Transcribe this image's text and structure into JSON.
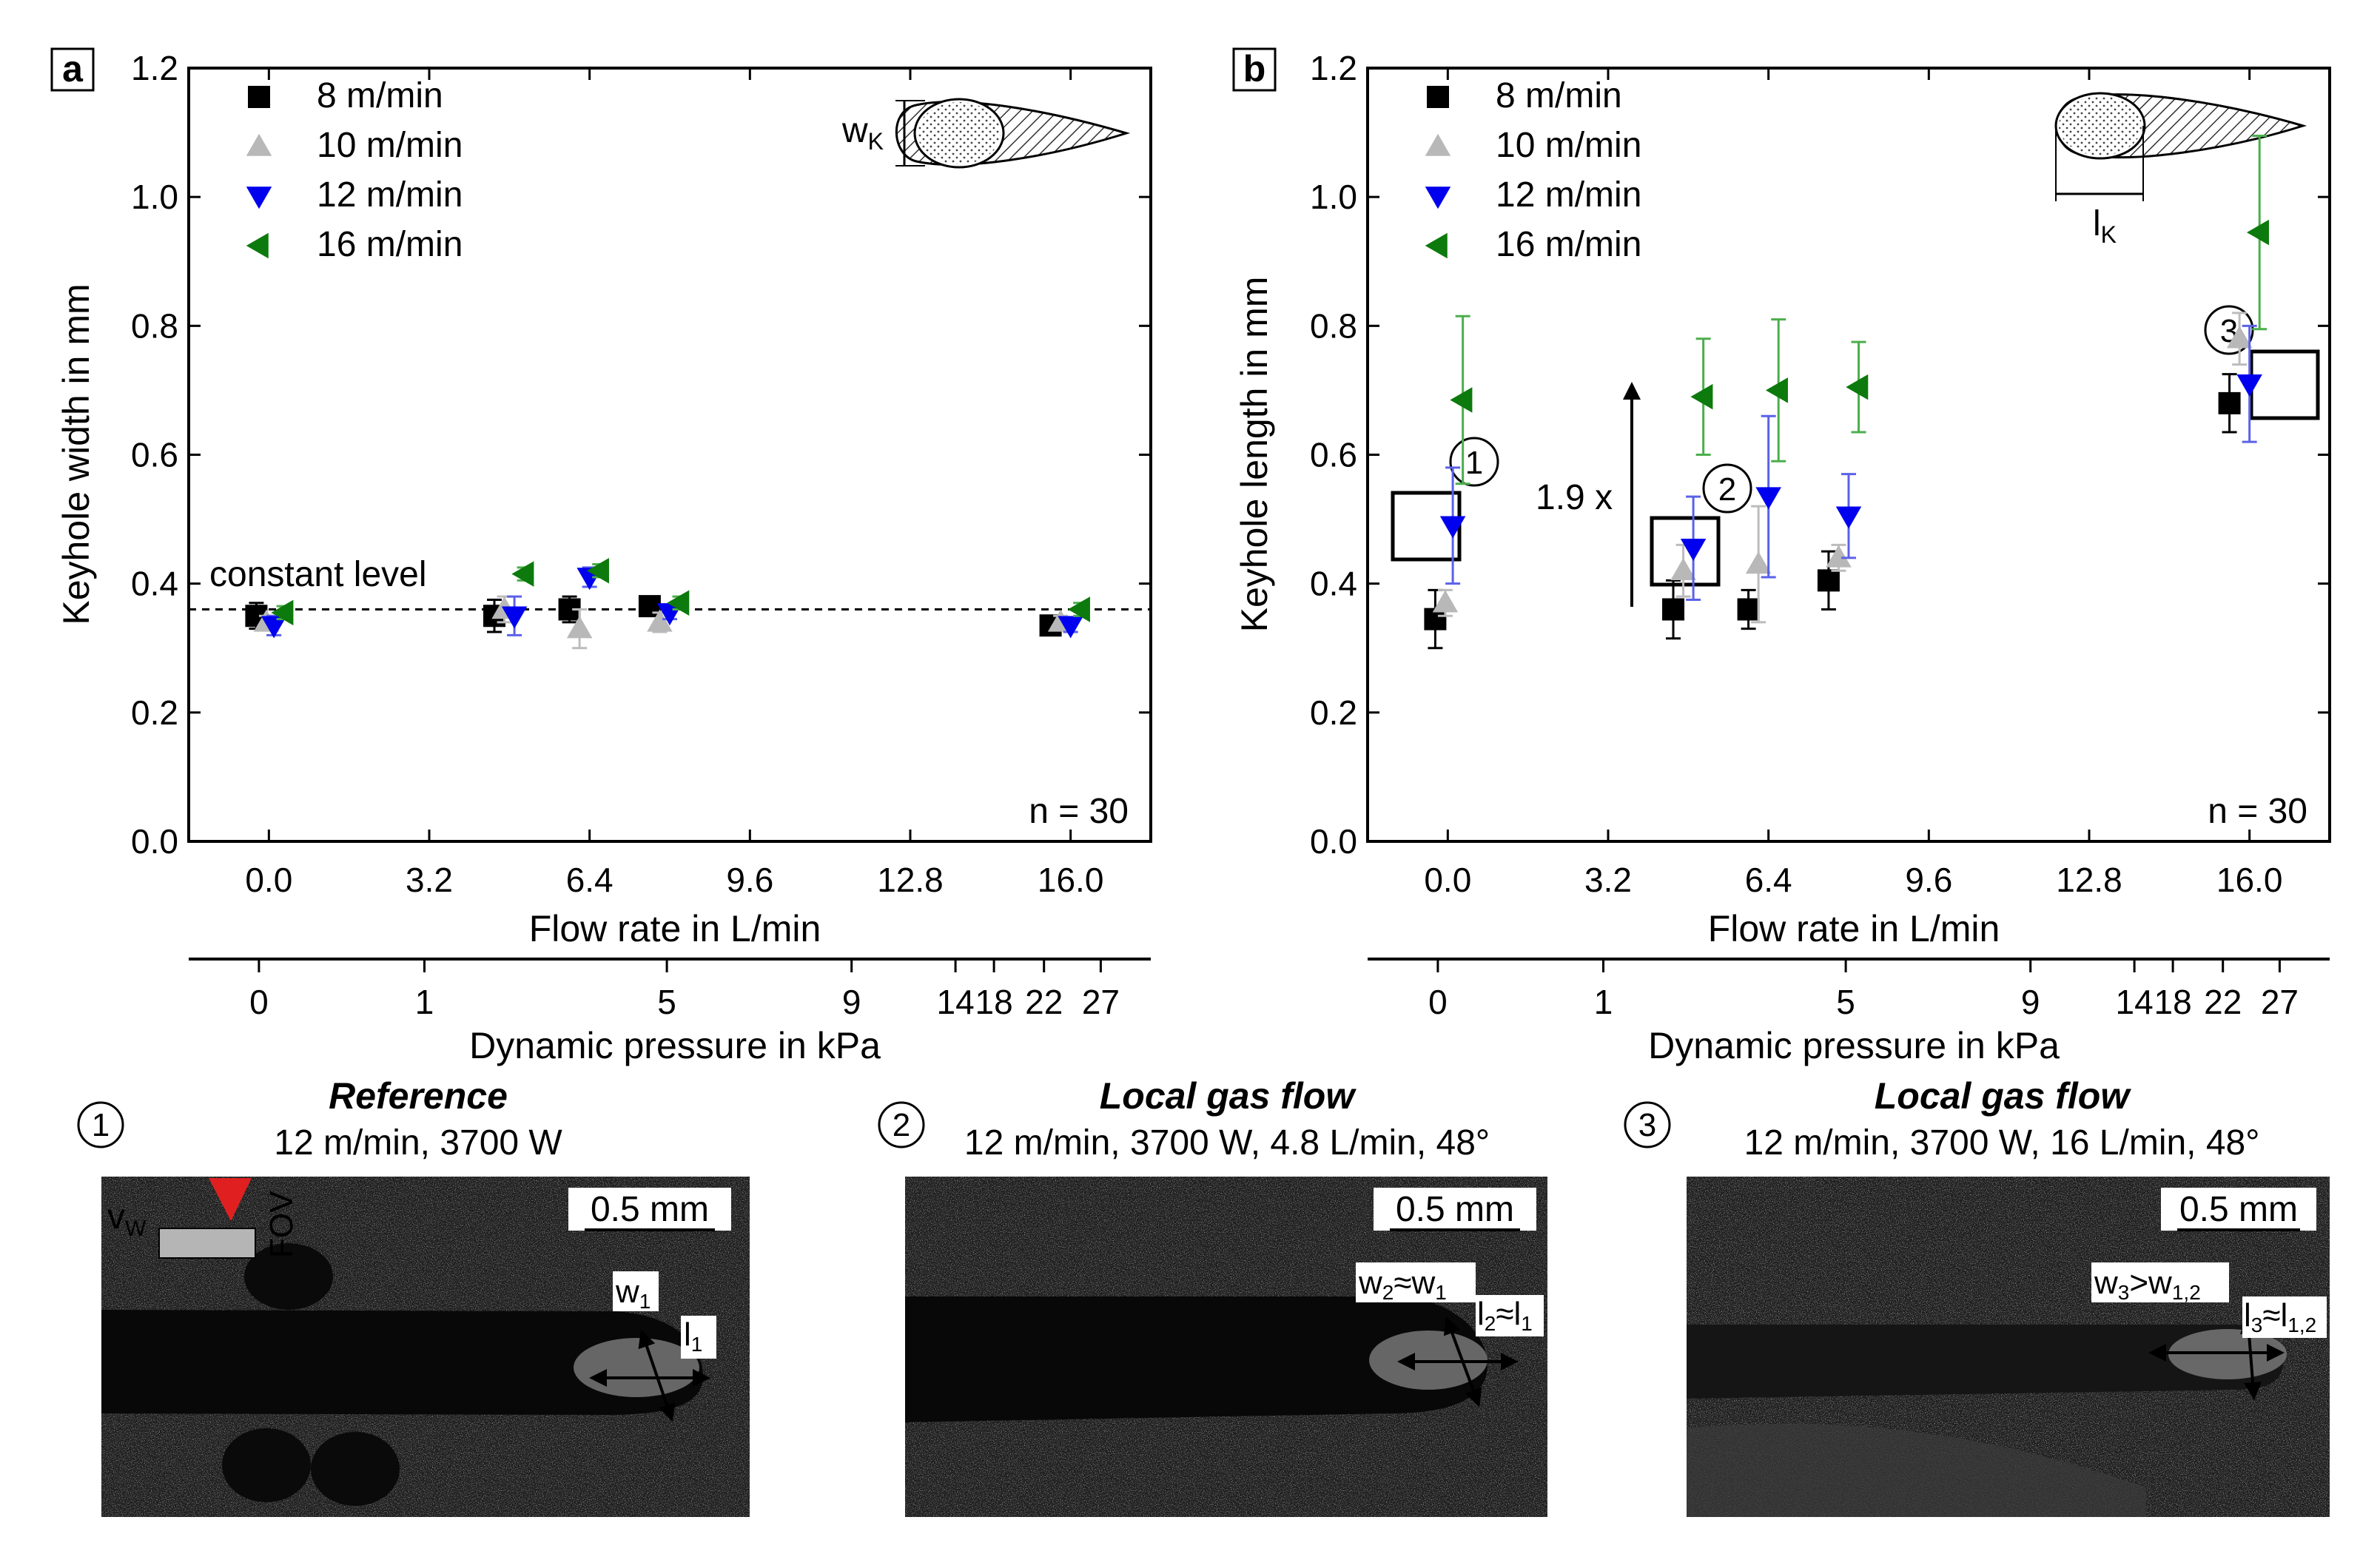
{
  "colors": {
    "s8": "#000000",
    "s10": "#b8b8b8",
    "s12": "#0000ee",
    "s16": "#0c7a0c",
    "errbar10": "#bcbcbc",
    "errbar12": "#5a62e8",
    "errbar16": "#4cae4c"
  },
  "shared": {
    "flow_ticks": [
      "0.0",
      "3.2",
      "6.4",
      "9.6",
      "12.8",
      "16.0"
    ],
    "pressure_ticks": [
      "0",
      "1",
      "5",
      "9",
      "14",
      "18",
      "22",
      "27"
    ],
    "xlabel": "Flow rate in L/min",
    "x2label": "Dynamic pressure in kPa",
    "y_ticks": [
      "0.0",
      "0.2",
      "0.4",
      "0.6",
      "0.8",
      "1.0",
      "1.2"
    ],
    "n_label": "n = 30"
  },
  "chart_data": [
    {
      "type": "scatter",
      "panel": "a",
      "ylabel": "Keyhole width in mm",
      "xlabel": "Flow rate in L/min",
      "x2label": "Dynamic pressure in kPa",
      "xlim": [
        -1.6,
        17.6
      ],
      "ylim": [
        0,
        1.2
      ],
      "inset_label": "w",
      "inset_sub": "K",
      "reference_line": {
        "y": 0.36,
        "label": "constant level"
      },
      "annotation": "n = 30",
      "series": [
        {
          "name": "8 m/min",
          "marker": "square",
          "color": "#000000",
          "points": [
            {
              "x": -0.25,
              "y": 0.35,
              "err": 0.02
            },
            {
              "x": 4.5,
              "y": 0.35,
              "err": 0.025
            },
            {
              "x": 6.0,
              "y": 0.36,
              "err": 0.02
            },
            {
              "x": 7.6,
              "y": 0.365,
              "err": 0.01
            },
            {
              "x": 15.6,
              "y": 0.335,
              "err": 0.01
            }
          ]
        },
        {
          "name": "10 m/min",
          "marker": "triangle-up",
          "color": "#b8b8b8",
          "points": [
            {
              "x": -0.05,
              "y": 0.34,
              "err": 0.01
            },
            {
              "x": 4.7,
              "y": 0.36,
              "err": 0.02
            },
            {
              "x": 6.2,
              "y": 0.33,
              "err": 0.03
            },
            {
              "x": 7.8,
              "y": 0.34,
              "err": 0.015
            },
            {
              "x": 15.8,
              "y": 0.34,
              "err": 0.01
            }
          ]
        },
        {
          "name": "12 m/min",
          "marker": "triangle-down",
          "color": "#0000ee",
          "points": [
            {
              "x": 0.1,
              "y": 0.335,
              "err": 0.015
            },
            {
              "x": 4.9,
              "y": 0.35,
              "err": 0.03
            },
            {
              "x": 6.4,
              "y": 0.41,
              "err": 0.015
            },
            {
              "x": 8.0,
              "y": 0.355,
              "err": 0.01
            },
            {
              "x": 16.0,
              "y": 0.335,
              "err": 0.01
            }
          ]
        },
        {
          "name": "16 m/min",
          "marker": "triangle-left",
          "color": "#0c7a0c",
          "points": [
            {
              "x": 0.3,
              "y": 0.355,
              "err": 0.01
            },
            {
              "x": 5.1,
              "y": 0.415,
              "err": 0.01
            },
            {
              "x": 6.6,
              "y": 0.42,
              "err": 0.01
            },
            {
              "x": 8.2,
              "y": 0.37,
              "err": 0.01
            },
            {
              "x": 16.2,
              "y": 0.36,
              "err": 0.01
            }
          ]
        }
      ]
    },
    {
      "type": "scatter",
      "panel": "b",
      "ylabel": "Keyhole length in mm",
      "xlabel": "Flow rate in L/min",
      "x2label": "Dynamic pressure in kPa",
      "xlim": [
        -1.6,
        17.6
      ],
      "ylim": [
        0,
        1.2
      ],
      "inset_label": "l",
      "inset_sub": "K",
      "annotation": "n = 30",
      "arrow_label": "1.9 x",
      "markers": [
        "1",
        "2",
        "3"
      ],
      "series": [
        {
          "name": "8 m/min",
          "marker": "square",
          "color": "#000000",
          "points": [
            {
              "x": -0.25,
              "y": 0.345,
              "err": 0.045
            },
            {
              "x": 4.5,
              "y": 0.36,
              "err": 0.045
            },
            {
              "x": 6.0,
              "y": 0.36,
              "err": 0.03
            },
            {
              "x": 7.6,
              "y": 0.405,
              "err": 0.045
            },
            {
              "x": 15.6,
              "y": 0.68,
              "err": 0.045
            }
          ]
        },
        {
          "name": "10 m/min",
          "marker": "triangle-up",
          "color": "#b8b8b8",
          "points": [
            {
              "x": -0.05,
              "y": 0.37,
              "err": 0.02
            },
            {
              "x": 4.7,
              "y": 0.42,
              "err": 0.04
            },
            {
              "x": 6.2,
              "y": 0.43,
              "err": 0.09
            },
            {
              "x": 7.8,
              "y": 0.44,
              "err": 0.02
            },
            {
              "x": 15.8,
              "y": 0.78,
              "err": 0.04
            }
          ]
        },
        {
          "name": "12 m/min",
          "marker": "triangle-down",
          "color": "#0000ee",
          "points": [
            {
              "x": 0.1,
              "y": 0.49,
              "err": 0.09
            },
            {
              "x": 4.9,
              "y": 0.455,
              "err": 0.08
            },
            {
              "x": 6.4,
              "y": 0.535,
              "err": 0.125
            },
            {
              "x": 8.0,
              "y": 0.505,
              "err": 0.065
            },
            {
              "x": 16.0,
              "y": 0.71,
              "err": 0.09
            }
          ]
        },
        {
          "name": "16 m/min",
          "marker": "triangle-left",
          "color": "#0c7a0c",
          "points": [
            {
              "x": 0.3,
              "y": 0.685,
              "err": 0.13
            },
            {
              "x": 5.1,
              "y": 0.69,
              "err": 0.09
            },
            {
              "x": 6.6,
              "y": 0.7,
              "err": 0.11
            },
            {
              "x": 8.2,
              "y": 0.705,
              "err": 0.07
            },
            {
              "x": 16.2,
              "y": 0.945,
              "err": 0.15
            }
          ]
        }
      ]
    }
  ],
  "photos": [
    {
      "marker": "1",
      "title": "Reference",
      "subtitle": "12 m/min, 3700 W",
      "scale": "0.5 mm",
      "labels": {
        "vw": "v",
        "vw_sub": "W",
        "fov": "FOV",
        "w": "w",
        "w_sub": "1",
        "l": "l",
        "l_sub": "1"
      }
    },
    {
      "marker": "2",
      "title": "Local gas flow",
      "subtitle": "12 m/min, 3700 W, 4.8 L/min, 48°",
      "scale": "0.5 mm",
      "labels": {
        "w": "w",
        "w_sub": "2",
        "w_rel": "≈w",
        "w_rel_sub": "1",
        "l": "l",
        "l_sub": "2",
        "l_rel": "≈l",
        "l_rel_sub": "1"
      }
    },
    {
      "marker": "3",
      "title": "Local gas flow",
      "subtitle": "12 m/min, 3700 W, 16 L/min, 48°",
      "scale": "0.5 mm",
      "labels": {
        "w": "w",
        "w_sub": "3",
        "w_rel": ">w",
        "w_rel_sub": "1,2",
        "l": "l",
        "l_sub": "3",
        "l_rel": "≈l",
        "l_rel_sub": "1,2"
      }
    }
  ]
}
